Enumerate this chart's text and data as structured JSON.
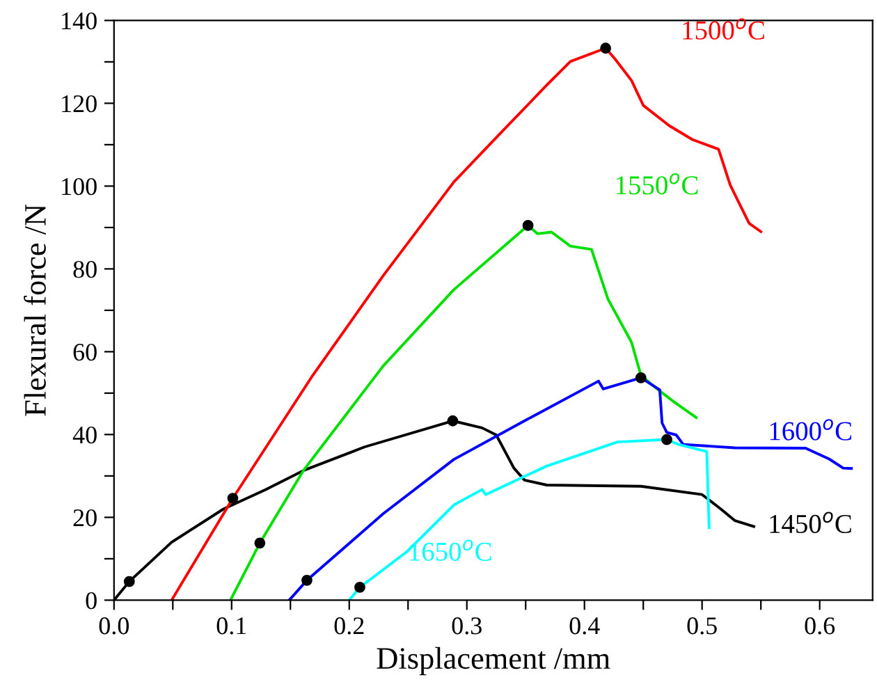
{
  "chart_data": {
    "type": "line",
    "xlabel": "Displacement /mm",
    "ylabel": "Flexural force /N",
    "xlim": [
      0,
      0.645
    ],
    "ylim": [
      0,
      140
    ],
    "xticks": [
      {
        "value": 0,
        "label": "0.0"
      },
      {
        "value": 0.05,
        "label": null
      },
      0.1,
      {
        "value": 0.15,
        "label": null
      },
      0.2,
      {
        "value": 0.25,
        "label": null
      },
      0.3,
      {
        "value": 0.35,
        "label": null
      },
      0.4,
      {
        "value": 0.45,
        "label": null
      },
      0.5,
      {
        "value": 0.55,
        "label": null
      },
      0.6
    ],
    "yticks": [
      0,
      {
        "value": 10,
        "label": null
      },
      20,
      {
        "value": 30,
        "label": null
      },
      40,
      {
        "value": 50,
        "label": null
      },
      60,
      {
        "value": 70,
        "label": null
      },
      80,
      {
        "value": 90,
        "label": null
      },
      100,
      {
        "value": 110,
        "label": null
      },
      120,
      {
        "value": 130,
        "label": null
      },
      140
    ],
    "grid": false,
    "legend": false,
    "line_style": "solid",
    "series": [
      {
        "name": "1450$^{o}$C",
        "color": "#000000",
        "x": [
          0,
          0.013,
          0.049,
          0.093,
          0.129,
          0.161,
          0.213,
          0.288,
          0.313,
          0.325,
          0.34,
          0.349,
          0.368,
          0.448,
          0.5,
          0.516,
          0.528,
          0.544
        ],
        "values": [
          0,
          4.5,
          14,
          22,
          26.7,
          31.3,
          37,
          43.3,
          41.6,
          39.9,
          31.9,
          29,
          27.8,
          27.5,
          25.5,
          22,
          19.2,
          17.8
        ]
      },
      {
        "name": "1500$^{o}$C",
        "color": "#ff0000",
        "x": [
          0.049,
          0.101,
          0.169,
          0.229,
          0.289,
          0.329,
          0.368,
          0.388,
          0.418,
          0.426,
          0.44,
          0.45,
          0.472,
          0.492,
          0.514,
          0.524,
          0.532,
          0.54,
          0.55
        ],
        "values": [
          0,
          24.6,
          54.3,
          78.4,
          101,
          112.9,
          124.4,
          130.1,
          133.3,
          130.7,
          125.5,
          119.5,
          114.6,
          111.2,
          108.9,
          100.2,
          95.6,
          91,
          89
        ]
      },
      {
        "name": "1550$^{o}$C",
        "color": "#00e000",
        "x": [
          0.099,
          0.124,
          0.161,
          0.229,
          0.289,
          0.352,
          0.36,
          0.372,
          0.388,
          0.406,
          0.42,
          0.44,
          0.448,
          0.46,
          0.476,
          0.495
        ],
        "values": [
          0,
          13.8,
          31.3,
          56.6,
          75,
          90.5,
          88.5,
          88.9,
          85.5,
          84.7,
          72.7,
          62.3,
          54.3,
          51.4,
          47.9,
          44.1
        ]
      },
      {
        "name": "1600$^{o}$C",
        "color": "#0000ff",
        "x": [
          0.149,
          0.164,
          0.229,
          0.289,
          0.349,
          0.412,
          0.416,
          0.448,
          0.464,
          0.466,
          0.47,
          0.478,
          0.484,
          0.528,
          0.588,
          0.608,
          0.62,
          0.627
        ],
        "values": [
          0,
          4.8,
          20.9,
          34,
          43.3,
          52.9,
          51,
          53.7,
          50.8,
          42.8,
          40.5,
          39.9,
          37.6,
          36.8,
          36.7,
          34.1,
          31.9,
          31.8
        ]
      },
      {
        "name": "1650$^{o}$C",
        "color": "#00ffff",
        "x": [
          0.2,
          0.209,
          0.249,
          0.289,
          0.309,
          0.313,
          0.316,
          0.368,
          0.428,
          0.47,
          0.48,
          0.504,
          0.506
        ],
        "values": [
          0,
          3.1,
          11.7,
          23,
          26.1,
          26.7,
          25.5,
          32.4,
          38.2,
          38.8,
          37.6,
          35.9,
          17.5
        ]
      },
      {
        "type": "scatter",
        "marker": "circle",
        "color": "#000000",
        "x": [
          0.013,
          0.288,
          0.101,
          0.418,
          0.124,
          0.352,
          0.164,
          0.448,
          0.209,
          0.47
        ],
        "values": [
          4.5,
          43.3,
          24.6,
          133.3,
          13.8,
          90.5,
          4.8,
          53.7,
          3.1,
          38.8
        ]
      }
    ]
  }
}
